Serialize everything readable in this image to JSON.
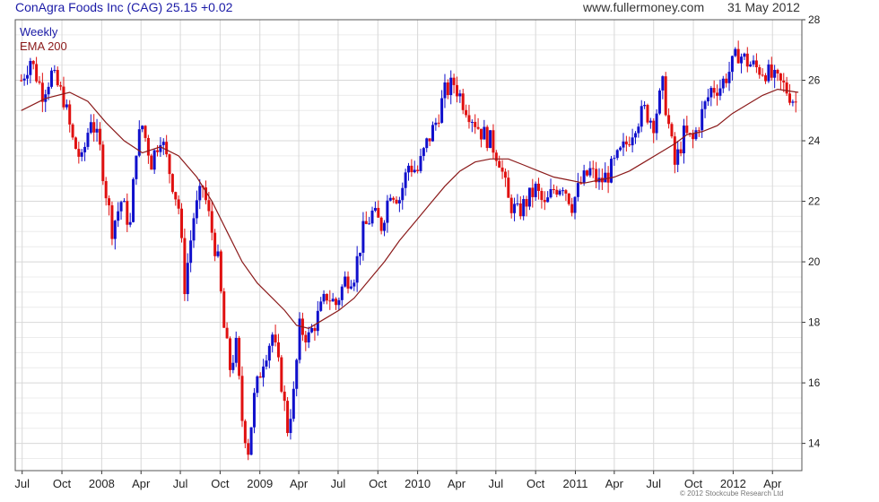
{
  "header": {
    "stock_title": "ConAgra Foods Inc (CAG) 25.15",
    "change": "+0.02",
    "website": "www.fullermoney.com",
    "date": "31 May 2012"
  },
  "copyright": "© 2012 Stockcube Research Ltd",
  "colors": {
    "up": "#1010cc",
    "down": "#e01010",
    "ema": "#8b1a1a",
    "grid": "#d8d8d8"
  },
  "chart_data": {
    "type": "candlestick",
    "period_label": "Weekly",
    "overlay_label": "EMA 200",
    "x_ticks": [
      "Jul",
      "Oct",
      "2008",
      "Apr",
      "Jul",
      "Oct",
      "2009",
      "Apr",
      "Jul",
      "Oct",
      "2010",
      "Apr",
      "Jul",
      "Oct",
      "2011",
      "Apr",
      "Jul",
      "Oct",
      "2012",
      "Apr"
    ],
    "y_ticks": [
      14,
      16,
      18,
      20,
      22,
      24,
      26,
      28
    ],
    "ylim": [
      13.1,
      28
    ],
    "grid": true,
    "close_path": [
      [
        "2007-06-29",
        26.0
      ],
      [
        "2007-07-20",
        26.7
      ],
      [
        "2007-08-17",
        25.6
      ],
      [
        "2007-09-07",
        26.2
      ],
      [
        "2007-10-05",
        25.4
      ],
      [
        "2007-10-26",
        24.0
      ],
      [
        "2007-11-16",
        23.3
      ],
      [
        "2007-12-07",
        24.8
      ],
      [
        "2007-12-28",
        23.7
      ],
      [
        "2008-01-11",
        22.3
      ],
      [
        "2008-01-25",
        21.1
      ],
      [
        "2008-02-15",
        22.0
      ],
      [
        "2008-03-07",
        21.2
      ],
      [
        "2008-03-21",
        23.8
      ],
      [
        "2008-04-04",
        24.5
      ],
      [
        "2008-04-25",
        23.3
      ],
      [
        "2008-05-16",
        24.2
      ],
      [
        "2008-06-06",
        23.0
      ],
      [
        "2008-06-27",
        21.8
      ],
      [
        "2008-07-11",
        19.2
      ],
      [
        "2008-08-01",
        21.5
      ],
      [
        "2008-08-22",
        22.5
      ],
      [
        "2008-09-12",
        21.0
      ],
      [
        "2008-09-26",
        20.0
      ],
      [
        "2008-10-10",
        17.8
      ],
      [
        "2008-10-24",
        16.5
      ],
      [
        "2008-11-07",
        17.2
      ],
      [
        "2008-11-21",
        14.8
      ],
      [
        "2008-12-05",
        13.8
      ],
      [
        "2008-12-19",
        15.5
      ],
      [
        "2009-01-09",
        16.8
      ],
      [
        "2009-01-30",
        17.6
      ],
      [
        "2009-02-20",
        16.0
      ],
      [
        "2009-03-06",
        14.5
      ],
      [
        "2009-03-20",
        15.6
      ],
      [
        "2009-04-03",
        17.8
      ],
      [
        "2009-04-24",
        17.5
      ],
      [
        "2009-05-15",
        18.2
      ],
      [
        "2009-06-05",
        18.9
      ],
      [
        "2009-06-26",
        18.6
      ],
      [
        "2009-07-17",
        19.4
      ],
      [
        "2009-08-07",
        19.6
      ],
      [
        "2009-08-28",
        21.0
      ],
      [
        "2009-09-18",
        21.6
      ],
      [
        "2009-10-09",
        21.2
      ],
      [
        "2009-10-30",
        22.4
      ],
      [
        "2009-11-20",
        22.1
      ],
      [
        "2009-12-11",
        23.2
      ],
      [
        "2010-01-01",
        23.0
      ],
      [
        "2010-01-22",
        23.9
      ],
      [
        "2010-02-12",
        24.6
      ],
      [
        "2010-03-05",
        25.6
      ],
      [
        "2010-03-26",
        25.9
      ],
      [
        "2010-04-16",
        25.3
      ],
      [
        "2010-05-07",
        24.8
      ],
      [
        "2010-05-28",
        24.3
      ],
      [
        "2010-06-18",
        24.0
      ],
      [
        "2010-07-09",
        23.4
      ],
      [
        "2010-07-30",
        22.0
      ],
      [
        "2010-08-20",
        21.6
      ],
      [
        "2010-09-10",
        22.0
      ],
      [
        "2010-10-01",
        22.4
      ],
      [
        "2010-10-22",
        21.8
      ],
      [
        "2010-11-12",
        22.4
      ],
      [
        "2010-12-03",
        22.6
      ],
      [
        "2010-12-24",
        21.9
      ],
      [
        "2011-01-14",
        22.6
      ],
      [
        "2011-02-04",
        23.0
      ],
      [
        "2011-02-25",
        22.6
      ],
      [
        "2011-03-18",
        22.9
      ],
      [
        "2011-04-08",
        23.4
      ],
      [
        "2011-04-29",
        23.9
      ],
      [
        "2011-05-20",
        24.6
      ],
      [
        "2011-06-10",
        25.0
      ],
      [
        "2011-07-01",
        24.6
      ],
      [
        "2011-07-22",
        25.8
      ],
      [
        "2011-08-05",
        24.5
      ],
      [
        "2011-08-19",
        23.2
      ],
      [
        "2011-09-09",
        24.2
      ],
      [
        "2011-09-30",
        24.0
      ],
      [
        "2011-10-21",
        24.9
      ],
      [
        "2011-11-11",
        25.7
      ],
      [
        "2011-12-02",
        25.8
      ],
      [
        "2011-12-23",
        26.3
      ],
      [
        "2012-01-13",
        26.9
      ],
      [
        "2012-02-03",
        26.6
      ],
      [
        "2012-02-24",
        26.4
      ],
      [
        "2012-03-16",
        26.3
      ],
      [
        "2012-04-06",
        26.0
      ],
      [
        "2012-04-27",
        25.8
      ],
      [
        "2012-05-18",
        25.4
      ],
      [
        "2012-05-31",
        25.15
      ]
    ],
    "ema_200": [
      [
        "2007-06-29",
        25.0
      ],
      [
        "2007-08-24",
        25.4
      ],
      [
        "2007-10-19",
        25.6
      ],
      [
        "2007-11-30",
        25.3
      ],
      [
        "2008-01-11",
        24.6
      ],
      [
        "2008-02-22",
        24.0
      ],
      [
        "2008-04-04",
        23.6
      ],
      [
        "2008-05-16",
        23.8
      ],
      [
        "2008-06-27",
        23.5
      ],
      [
        "2008-08-08",
        22.8
      ],
      [
        "2008-09-12",
        22.0
      ],
      [
        "2008-10-17",
        21.0
      ],
      [
        "2008-11-21",
        20.0
      ],
      [
        "2008-12-26",
        19.3
      ],
      [
        "2009-01-30",
        18.8
      ],
      [
        "2009-02-27",
        18.4
      ],
      [
        "2009-03-27",
        17.9
      ],
      [
        "2009-04-24",
        17.8
      ],
      [
        "2009-05-29",
        18.1
      ],
      [
        "2009-07-03",
        18.4
      ],
      [
        "2009-08-07",
        18.8
      ],
      [
        "2009-09-11",
        19.4
      ],
      [
        "2009-10-16",
        20.0
      ],
      [
        "2009-11-20",
        20.7
      ],
      [
        "2009-12-25",
        21.3
      ],
      [
        "2010-01-29",
        21.9
      ],
      [
        "2010-03-05",
        22.5
      ],
      [
        "2010-04-09",
        23.0
      ],
      [
        "2010-05-14",
        23.3
      ],
      [
        "2010-06-18",
        23.4
      ],
      [
        "2010-07-30",
        23.4
      ],
      [
        "2010-09-03",
        23.2
      ],
      [
        "2010-10-08",
        23.0
      ],
      [
        "2010-11-12",
        22.8
      ],
      [
        "2010-12-17",
        22.7
      ],
      [
        "2011-01-21",
        22.6
      ],
      [
        "2011-02-25",
        22.7
      ],
      [
        "2011-04-01",
        22.8
      ],
      [
        "2011-05-06",
        23.0
      ],
      [
        "2011-06-10",
        23.3
      ],
      [
        "2011-07-15",
        23.6
      ],
      [
        "2011-08-19",
        23.9
      ],
      [
        "2011-09-16",
        24.2
      ],
      [
        "2011-10-21",
        24.3
      ],
      [
        "2011-11-25",
        24.5
      ],
      [
        "2011-12-30",
        24.9
      ],
      [
        "2012-02-03",
        25.2
      ],
      [
        "2012-03-09",
        25.5
      ],
      [
        "2012-04-13",
        25.7
      ],
      [
        "2012-05-31",
        25.6
      ]
    ]
  }
}
